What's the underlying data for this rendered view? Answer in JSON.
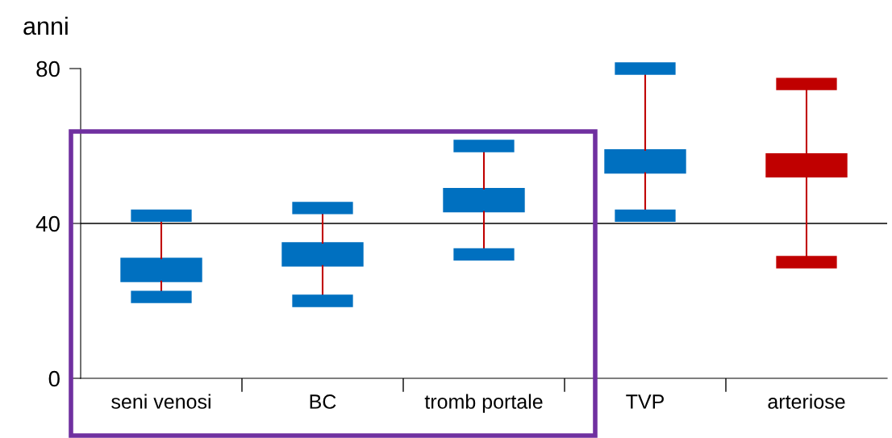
{
  "chart_data": {
    "type": "box",
    "ylabel": "anni",
    "categories": [
      "seni venosi",
      "BC",
      "tromb portale",
      "TVP",
      "arteriose"
    ],
    "boxes": [
      {
        "low": 21,
        "q1": 25,
        "q3": 31,
        "high": 42
      },
      {
        "low": 20,
        "q1": 29,
        "q3": 35,
        "high": 44
      },
      {
        "low": 32,
        "q1": 43,
        "q3": 49,
        "high": 60
      },
      {
        "low": 42,
        "q1": 53,
        "q3": 59,
        "high": 80
      },
      {
        "low": 30,
        "q1": 52,
        "q3": 58,
        "high": 76
      }
    ],
    "colors": [
      "#0070c0",
      "#0070c0",
      "#0070c0",
      "#0070c0",
      "#c00000"
    ],
    "ylim": [
      0,
      80
    ],
    "yticks": [
      0,
      40,
      80
    ],
    "ref_lines": [
      {
        "axis": "y",
        "value": 40,
        "color": "#000000"
      }
    ]
  }
}
